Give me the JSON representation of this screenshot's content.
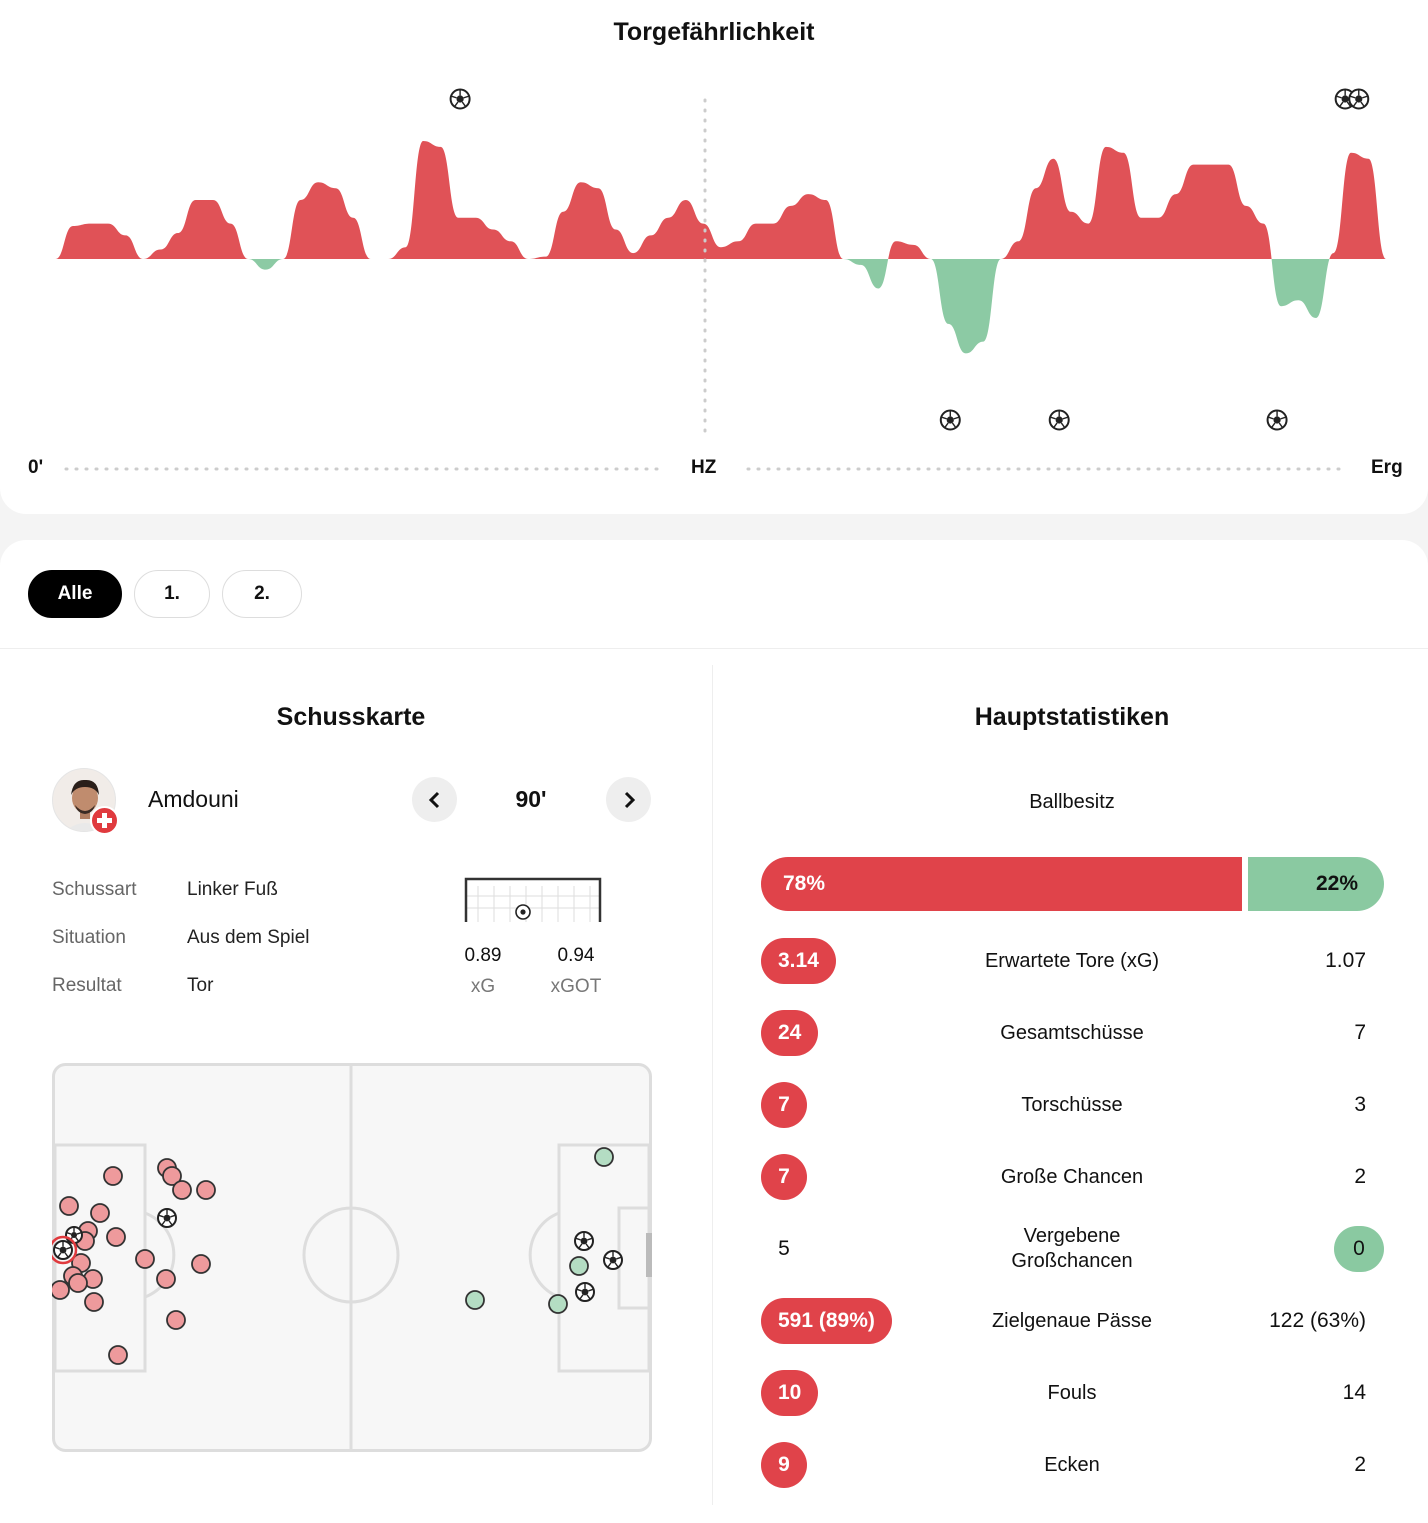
{
  "momentum": {
    "title": "Torgefährlichkeit",
    "start_label": "0'",
    "half_label": "HZ",
    "end_label": "Erg",
    "home_color": "#e05257",
    "away_color": "#8ccaa4",
    "values": [
      0,
      0,
      0.28,
      0.3,
      0.3,
      0.2,
      0,
      0.08,
      0.22,
      0.5,
      0.5,
      0.3,
      0,
      -0.09,
      0,
      0.5,
      0.65,
      0.6,
      0.35,
      0,
      0,
      0.1,
      1.0,
      0.95,
      0.35,
      0.35,
      0.25,
      0.15,
      0,
      0.02,
      0.4,
      0.65,
      0.6,
      0.25,
      0.05,
      0.2,
      0.35,
      0.5,
      0.3,
      0.1,
      0.15,
      0.3,
      0.3,
      0.45,
      0.55,
      0.5,
      0,
      -0.05,
      -0.25,
      0.15,
      0.12,
      0,
      -0.55,
      -0.8,
      -0.7,
      0,
      0.15,
      0.6,
      0.85,
      0.4,
      0.3,
      0.95,
      0.9,
      0.35,
      0.35,
      0.55,
      0.8,
      0.8,
      0.8,
      0.45,
      0.3,
      -0.4,
      -0.35,
      -0.5,
      0.05,
      0.9,
      0.85,
      0
    ],
    "home_goal_minutes": [
      31,
      96,
      97
    ],
    "away_goal_minutes": [
      67,
      75,
      91
    ]
  },
  "tabs": [
    "Alle",
    "1.",
    "2."
  ],
  "shotmap": {
    "title": "Schusskarte",
    "player": "Amdouni",
    "minute": "90'",
    "prev_icon": "chevron-left-icon",
    "next_icon": "chevron-right-icon",
    "details": [
      {
        "label": "Schussart",
        "value": "Linker Fuß"
      },
      {
        "label": "Situation",
        "value": "Aus dem Spiel"
      },
      {
        "label": "Resultat",
        "value": "Tor"
      }
    ],
    "xg": "0.89",
    "xg_label": "xG",
    "xgot": "0.94",
    "xgot_label": "xGOT",
    "home_color": "#ee9a9c",
    "away_color": "#b4ddc3"
  },
  "stats": {
    "title": "Hauptstatistiken",
    "possession_label": "Ballbesitz",
    "possession_home": "78%",
    "possession_away": "22%",
    "rows": [
      {
        "label": "Erwartete Tore (xG)",
        "home": "3.14",
        "away": "1.07",
        "home_pill": true,
        "away_pill": false
      },
      {
        "label": "Gesamtschüsse",
        "home": "24",
        "away": "7",
        "home_pill": true,
        "away_pill": false
      },
      {
        "label": "Torschüsse",
        "home": "7",
        "away": "3",
        "home_pill": true,
        "away_pill": false
      },
      {
        "label": "Große Chancen",
        "home": "7",
        "away": "2",
        "home_pill": true,
        "away_pill": false
      },
      {
        "label": "Vergebene Großchancen",
        "home": "5",
        "away": "0",
        "home_pill": false,
        "away_pill": true
      },
      {
        "label": "Zielgenaue Pässe",
        "home": "591 (89%)",
        "away": "122 (63%)",
        "home_pill": true,
        "away_pill": false
      },
      {
        "label": "Fouls",
        "home": "10",
        "away": "14",
        "home_pill": true,
        "away_pill": false
      },
      {
        "label": "Ecken",
        "home": "9",
        "away": "2",
        "home_pill": true,
        "away_pill": false
      }
    ]
  }
}
